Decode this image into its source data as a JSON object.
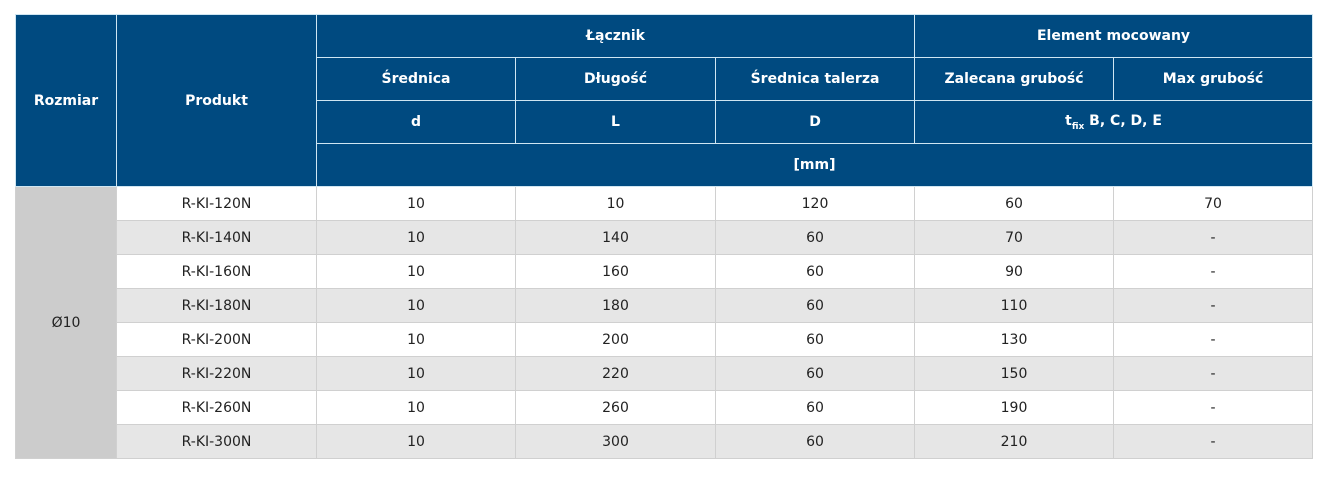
{
  "header": {
    "rozmiar": "Rozmiar",
    "produkt": "Produkt",
    "lacznik": "Łącznik",
    "element": "Element mocowany",
    "srednica": "Średnica",
    "dlugosc": "Długość",
    "srednica_talerza": "Średnica talerza",
    "zalecana": "Zalecana grubość",
    "max": "Max grubość",
    "sym_d": "d",
    "sym_L": "L",
    "sym_D": "D",
    "tfix_t": "t",
    "tfix_sub": "fix",
    "tfix_rest": " B, C, D, E",
    "unit": "[mm]"
  },
  "size": "Ø10",
  "rows": [
    [
      "R-KI-120N",
      "10",
      "10",
      "120",
      "60",
      "70"
    ],
    [
      "R-KI-140N",
      "10",
      "140",
      "60",
      "70",
      "-"
    ],
    [
      "R-KI-160N",
      "10",
      "160",
      "60",
      "90",
      "-"
    ],
    [
      "R-KI-180N",
      "10",
      "180",
      "60",
      "110",
      "-"
    ],
    [
      "R-KI-200N",
      "10",
      "200",
      "60",
      "130",
      "-"
    ],
    [
      "R-KI-220N",
      "10",
      "220",
      "60",
      "150",
      "-"
    ],
    [
      "R-KI-260N",
      "10",
      "260",
      "60",
      "190",
      "-"
    ],
    [
      "R-KI-300N",
      "10",
      "300",
      "60",
      "210",
      "-"
    ]
  ],
  "colors": {
    "header_bg": "#004a80",
    "size_bg": "#cccccc",
    "row_alt": "#e6e6e6"
  }
}
